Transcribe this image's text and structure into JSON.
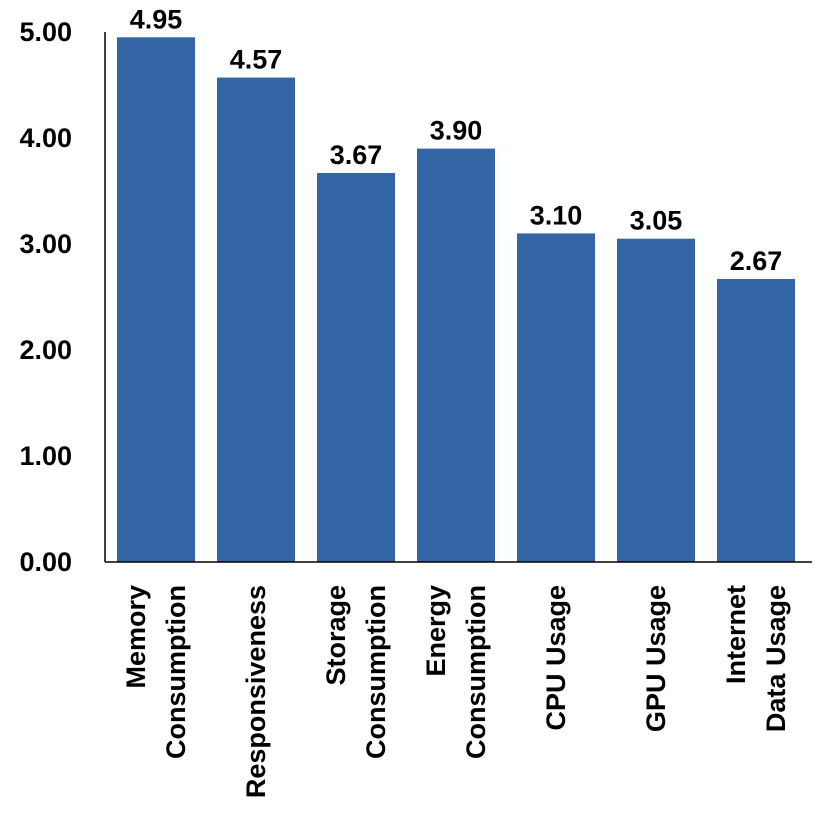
{
  "chart_data": {
    "type": "bar",
    "categories": [
      [
        "Memory",
        "Consumption"
      ],
      [
        "Responsiveness"
      ],
      [
        "Storage",
        "Consumption"
      ],
      [
        "Energy",
        "Consumption"
      ],
      [
        "CPU Usage"
      ],
      [
        "GPU Usage"
      ],
      [
        "Internet",
        "Data Usage"
      ]
    ],
    "values": [
      4.95,
      4.57,
      3.67,
      3.9,
      3.1,
      3.05,
      2.67
    ],
    "value_labels": [
      "4.95",
      "4.57",
      "3.67",
      "3.90",
      "3.10",
      "3.05",
      "2.67"
    ],
    "y_ticks": [
      "0.00",
      "1.00",
      "2.00",
      "3.00",
      "4.00",
      "5.00"
    ],
    "ylim": [
      0,
      5
    ],
    "bar_color": "#3465A4",
    "grid": false,
    "legend": "none"
  }
}
